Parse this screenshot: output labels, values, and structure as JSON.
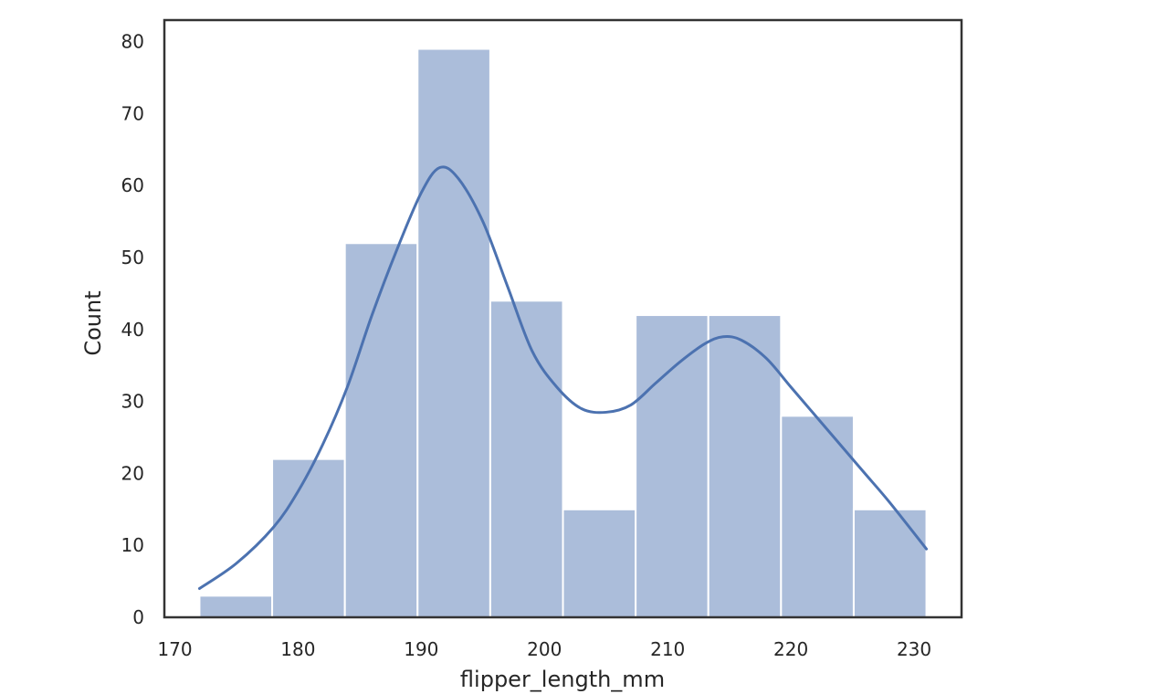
{
  "chart_data": {
    "type": "bar",
    "bins": [
      {
        "x0": 172.0,
        "x1": 177.9,
        "count": 3
      },
      {
        "x0": 177.9,
        "x1": 183.8,
        "count": 22
      },
      {
        "x0": 183.8,
        "x1": 189.7,
        "count": 52
      },
      {
        "x0": 189.7,
        "x1": 195.6,
        "count": 79
      },
      {
        "x0": 195.6,
        "x1": 201.5,
        "count": 44
      },
      {
        "x0": 201.5,
        "x1": 207.4,
        "count": 15
      },
      {
        "x0": 207.4,
        "x1": 213.3,
        "count": 42
      },
      {
        "x0": 213.3,
        "x1": 219.2,
        "count": 42
      },
      {
        "x0": 219.2,
        "x1": 225.1,
        "count": 28
      },
      {
        "x0": 225.1,
        "x1": 231.0,
        "count": 15
      }
    ],
    "kde": {
      "x": [
        172,
        175,
        178,
        180,
        182,
        184,
        186,
        188,
        190,
        191.5,
        193,
        195,
        197,
        199,
        201,
        203,
        205,
        207,
        209,
        211,
        213,
        214.5,
        216,
        218,
        220,
        222,
        224,
        226,
        228,
        231
      ],
      "y": [
        4,
        7.5,
        12.5,
        17.5,
        24,
        32,
        42,
        51,
        59,
        62.5,
        61,
        55,
        46,
        37,
        32,
        29,
        28.5,
        29.5,
        32.5,
        35.5,
        38,
        39,
        38.5,
        36,
        32,
        28,
        24,
        20,
        16,
        9.5
      ]
    },
    "xlabel": "flipper_length_mm",
    "ylabel": "Count",
    "xlim": [
      169.15,
      233.85
    ],
    "ylim": [
      0,
      83
    ],
    "xticks": [
      170,
      180,
      190,
      200,
      210,
      220,
      230
    ],
    "yticks": [
      0,
      10,
      20,
      30,
      40,
      50,
      60,
      70,
      80
    ],
    "bar_color": "#4c72b0",
    "bar_alpha": 0.47,
    "line_color": "#4c72b0",
    "grid": false
  }
}
